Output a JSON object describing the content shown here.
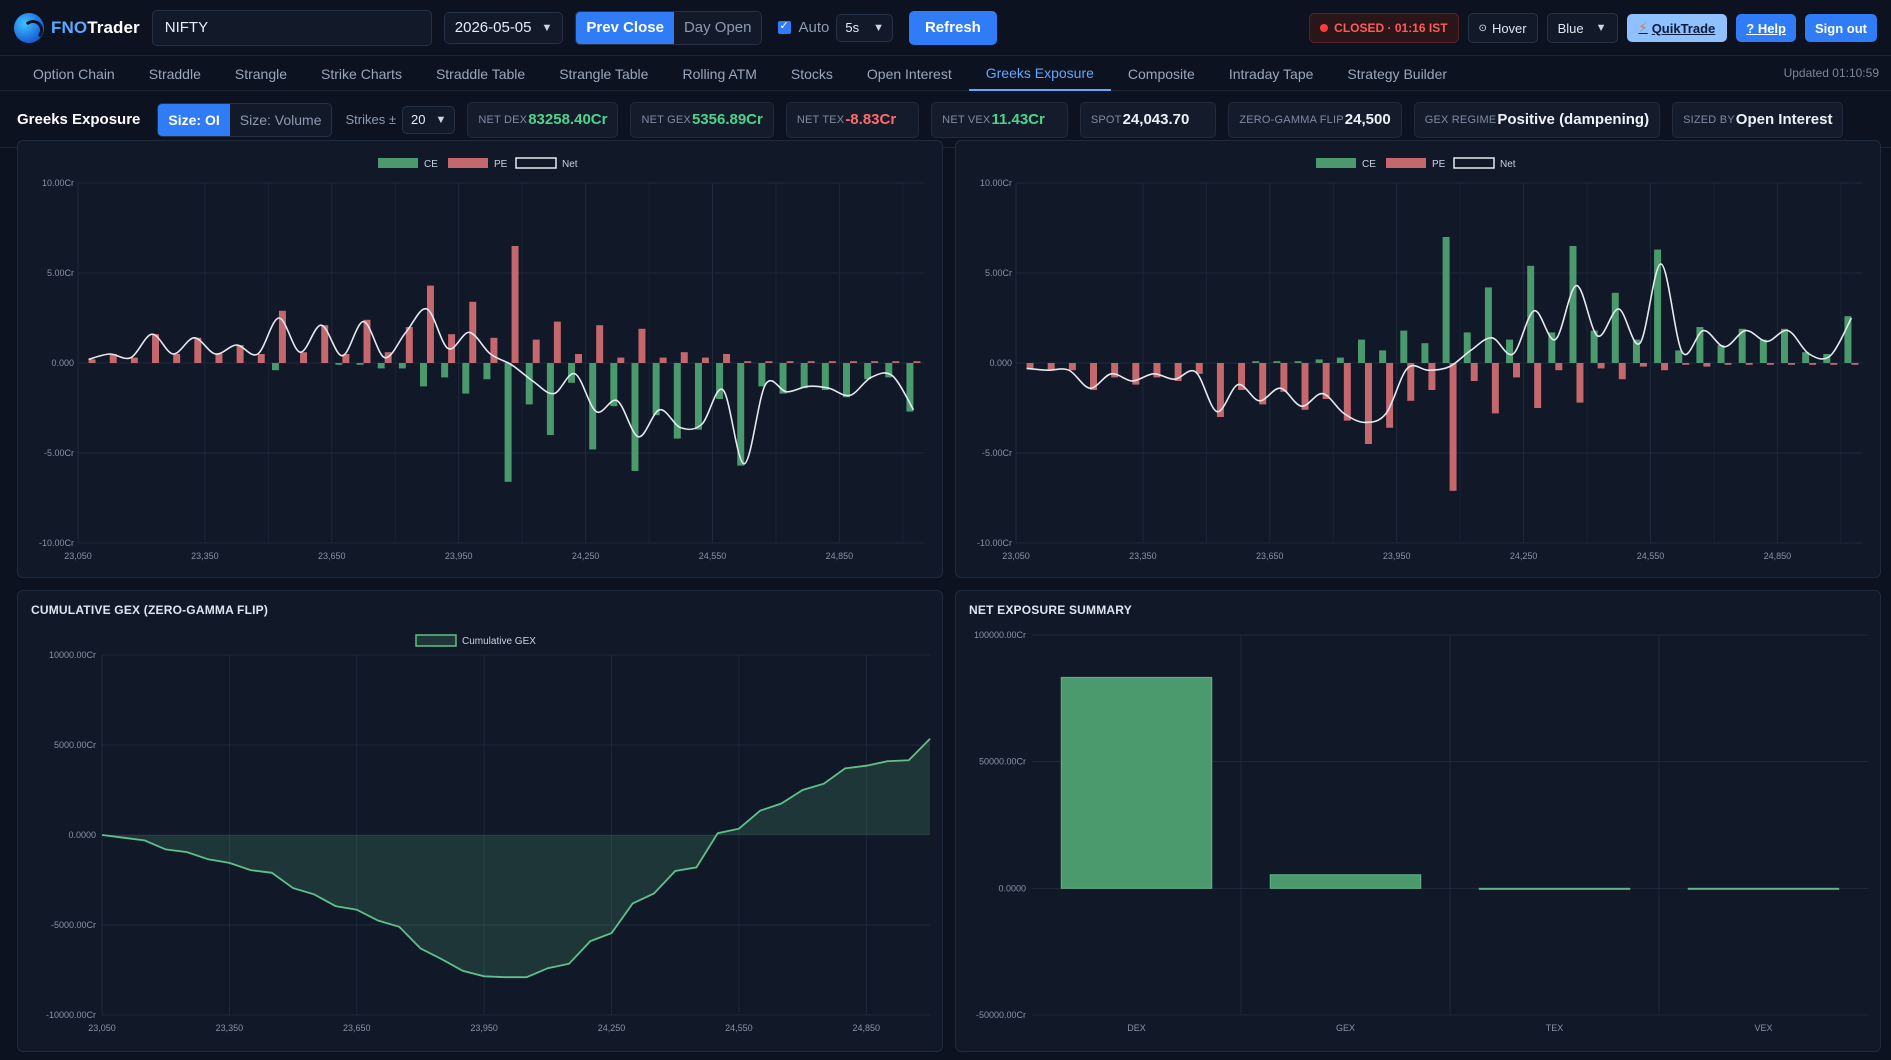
{
  "app": {
    "logo_fno": "FNO",
    "logo_trader": "Trader"
  },
  "toolbar": {
    "symbol": "NIFTY",
    "expiry": "2026-05-05",
    "prev_close_label": "Prev Close",
    "day_open_label": "Day Open",
    "auto_label": "Auto",
    "interval": "5s",
    "refresh_label": "Refresh",
    "closed_label": "CLOSED · 01:16 IST",
    "hover_label": "Hover",
    "theme": "Blue",
    "quiktrade_label": "QuikTrade",
    "help_label": "? Help",
    "signout_label": "Sign out"
  },
  "tabs": [
    "Option Chain",
    "Straddle",
    "Strangle",
    "Strike Charts",
    "Straddle Table",
    "Strangle Table",
    "Rolling ATM",
    "Stocks",
    "Open Interest",
    "Greeks Exposure",
    "Composite",
    "Intraday Tape",
    "Strategy Builder"
  ],
  "active_tab": "Greeks Exposure",
  "updated": "Updated 01:10:59",
  "greeks_bar": {
    "title": "Greeks Exposure",
    "size_oi": "Size: OI",
    "size_volume": "Size: Volume",
    "strikes_label": "Strikes ±",
    "strikes_value": "20",
    "net_dex_label": "NET DEX",
    "net_dex": "83258.40Cr",
    "net_gex_label": "NET GEX",
    "net_gex": "5356.89Cr",
    "net_tex_label": "NET TEX",
    "net_tex": "-8.83Cr",
    "net_vex_label": "NET VEX",
    "net_vex": "11.43Cr",
    "spot_label": "SPOT",
    "spot": "24,043.70",
    "zgf_label": "ZERO-GAMMA FLIP",
    "zgf": "24,500",
    "regime_label": "GEX REGIME",
    "regime": "Positive (dampening)",
    "sized_label": "SIZED BY",
    "sized": "Open Interest"
  },
  "colors": {
    "ce": "#4a9a6e",
    "pe": "#c4686e",
    "net": "#e6e9ef",
    "accent": "#2f7cf6",
    "cum": "#5fc08a"
  },
  "panels": {
    "cum_title": "CUMULATIVE GEX (ZERO-GAMMA FLIP)",
    "summary_title": "NET EXPOSURE SUMMARY"
  },
  "chart_data": [
    {
      "type": "bar",
      "name": "dex-chart",
      "legend": [
        "CE",
        "PE",
        "Net"
      ],
      "x_ticks": [
        "23,050",
        "23,350",
        "23,650",
        "23,950",
        "24,250",
        "24,550",
        "24,850"
      ],
      "y_ticks": [
        "10.00Cr",
        "5.00Cr",
        "0.000",
        "-5.00Cr",
        "-10.00Cr"
      ],
      "ylim": [
        -10,
        10
      ],
      "strike_start": 23050,
      "strike_step": 50,
      "strike_count": 40,
      "ce": [
        0,
        0,
        0,
        0,
        0,
        0,
        0,
        0,
        0,
        -0.4,
        0,
        0,
        -0.1,
        -0.1,
        -0.3,
        -0.3,
        -1.3,
        -0.8,
        -1.7,
        -0.9,
        -6.6,
        -2.3,
        -4.0,
        -1.1,
        -4.8,
        -2.4,
        -6.0,
        -2.9,
        -4.2,
        -3.7,
        -2.0,
        -5.7,
        -1.3,
        -1.7,
        -1.4,
        -1.5,
        -1.9,
        -0.9,
        -0.8,
        -2.7
      ],
      "pe": [
        0.2,
        0.5,
        0.3,
        1.6,
        0.5,
        1.4,
        0.5,
        1.0,
        0.5,
        2.9,
        0.6,
        2.1,
        0.5,
        2.4,
        0.6,
        2.0,
        4.3,
        1.6,
        3.4,
        1.4,
        6.5,
        1.3,
        2.3,
        0.5,
        2.1,
        0.3,
        1.9,
        0.3,
        0.6,
        0.3,
        0.5,
        0.1,
        0.1,
        0.1,
        0.1,
        0.1,
        0.1,
        0.1,
        0.1,
        0.1
      ],
      "net": [
        0.2,
        0.5,
        0.3,
        1.6,
        0.5,
        1.4,
        0.5,
        1.0,
        0.5,
        2.5,
        0.6,
        2.1,
        0.4,
        2.3,
        0.3,
        1.7,
        3.0,
        0.8,
        1.7,
        0.5,
        -0.1,
        -1.0,
        -1.7,
        -0.6,
        -2.7,
        -2.1,
        -4.1,
        -2.6,
        -3.6,
        -3.4,
        -1.5,
        -5.6,
        -1.2,
        -1.6,
        -1.3,
        -1.4,
        -1.8,
        -0.8,
        -0.7,
        -2.6
      ]
    },
    {
      "type": "bar",
      "name": "gex-chart",
      "legend": [
        "CE",
        "PE",
        "Net"
      ],
      "x_ticks": [
        "23,050",
        "23,350",
        "23,650",
        "23,950",
        "24,250",
        "24,550",
        "24,850"
      ],
      "y_ticks": [
        "10.00Cr",
        "5.00Cr",
        "0.000",
        "-5.00Cr",
        "-10.00Cr"
      ],
      "ylim": [
        -10,
        10
      ],
      "strike_start": 23050,
      "strike_step": 50,
      "strike_count": 40,
      "ce": [
        0,
        0,
        0,
        0,
        0,
        0,
        0,
        0,
        0,
        0,
        0,
        0.1,
        0.1,
        0.1,
        0.2,
        0.3,
        1.3,
        0.7,
        1.8,
        1.1,
        7.0,
        1.7,
        4.2,
        1.3,
        5.4,
        1.7,
        6.5,
        1.8,
        3.9,
        1.3,
        6.3,
        0.7,
        2.0,
        1.0,
        1.9,
        1.3,
        1.9,
        0.6,
        0.5,
        2.6
      ],
      "pe": [
        -0.3,
        -0.4,
        -0.4,
        -1.5,
        -0.8,
        -1.2,
        -0.8,
        -1.0,
        -0.6,
        -3.0,
        -1.5,
        -2.3,
        -1.6,
        -2.6,
        -2.0,
        -3.2,
        -4.5,
        -3.6,
        -2.1,
        -1.5,
        -7.1,
        -1.0,
        -2.8,
        -0.8,
        -2.5,
        -0.4,
        -2.2,
        -0.3,
        -0.9,
        -0.2,
        -0.4,
        -0.1,
        -0.2,
        -0.1,
        -0.1,
        -0.1,
        -0.1,
        -0.1,
        -0.1,
        -0.1
      ],
      "net": [
        -0.3,
        -0.4,
        -0.4,
        -1.4,
        -0.6,
        -1.0,
        -0.6,
        -0.9,
        -0.5,
        -2.7,
        -1.2,
        -2.1,
        -1.4,
        -2.4,
        -1.7,
        -2.8,
        -3.3,
        -2.8,
        -0.3,
        -0.4,
        -0.2,
        0.7,
        1.4,
        0.5,
        2.9,
        1.3,
        4.3,
        1.5,
        3.0,
        1.1,
        5.5,
        0.6,
        1.8,
        0.9,
        1.8,
        1.2,
        1.8,
        0.5,
        0.4,
        2.5
      ]
    },
    {
      "type": "area",
      "name": "cumulative-gex",
      "legend": [
        "Cumulative GEX"
      ],
      "x_ticks": [
        "23,050",
        "23,350",
        "23,650",
        "23,950",
        "24,250",
        "24,550",
        "24,850"
      ],
      "y_ticks": [
        "10000.00Cr",
        "5000.00Cr",
        "0.0000",
        "-5000.00Cr",
        "-10000.00Cr"
      ],
      "ylim": [
        -10000,
        10000
      ],
      "values": [
        0,
        -150,
        -300,
        -800,
        -950,
        -1350,
        -1550,
        -1950,
        -2100,
        -2950,
        -3300,
        -3950,
        -4150,
        -4750,
        -5100,
        -6300,
        -6900,
        -7550,
        -7850,
        -7900,
        -7900,
        -7400,
        -7150,
        -5900,
        -5450,
        -3800,
        -3250,
        -2000,
        -1800,
        100,
        350,
        1350,
        1750,
        2500,
        2850,
        3700,
        3850,
        4100,
        4150,
        5350
      ]
    },
    {
      "type": "bar",
      "name": "net-exposure-summary",
      "categories": [
        "DEX",
        "GEX",
        "TEX",
        "VEX"
      ],
      "values": [
        83258.4,
        5356.89,
        -8.83,
        11.43
      ],
      "y_ticks": [
        "100000.00Cr",
        "50000.00Cr",
        "0.0000",
        "-50000.00Cr"
      ],
      "ylim": [
        -50000,
        100000
      ]
    }
  ]
}
